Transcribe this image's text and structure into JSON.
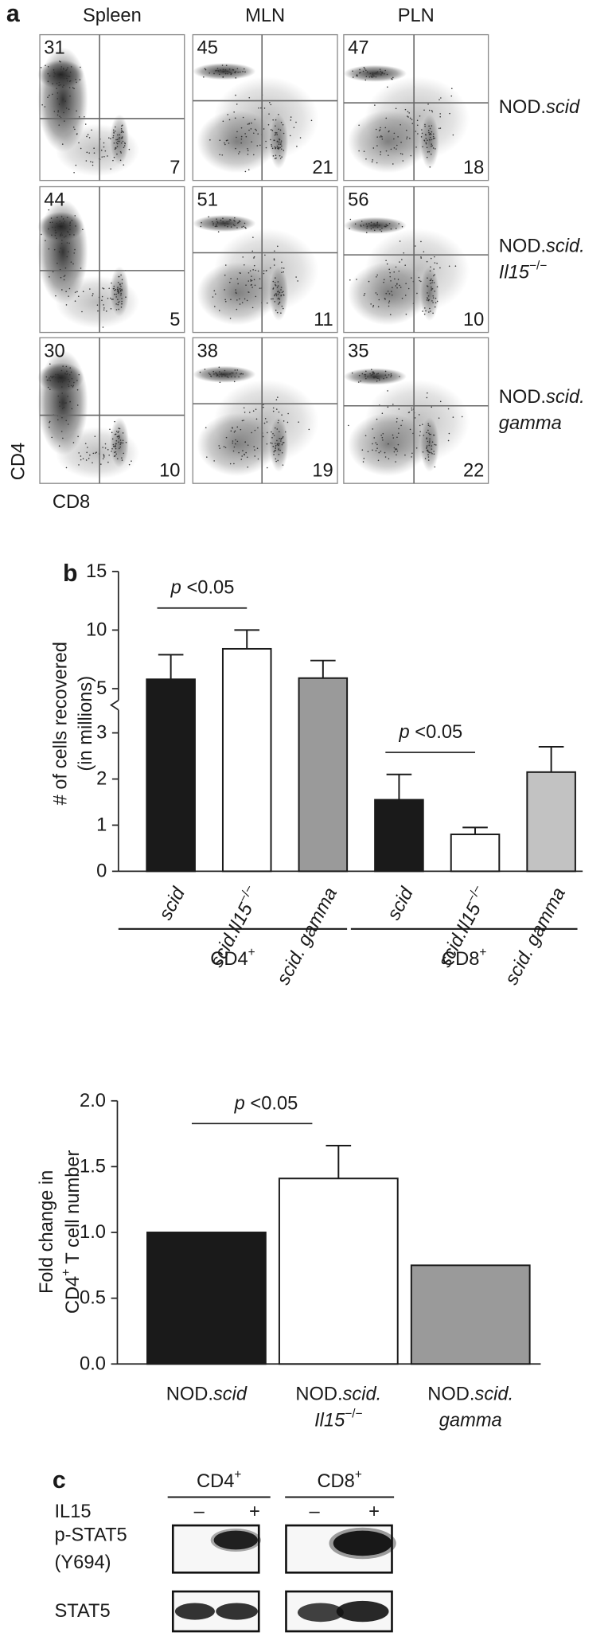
{
  "panel_labels": [
    "a",
    "b",
    "c"
  ],
  "flow": {
    "x_label": "CD8",
    "y_label": "CD4",
    "columns": [
      "Spleen",
      "MLN",
      "PLN"
    ],
    "rows": [
      [
        [
          {
            "text": "NOD."
          },
          {
            "text": "scid",
            "style": "italic"
          }
        ]
      ],
      [
        [
          {
            "text": "NOD."
          },
          {
            "text": "scid.",
            "style": "italic"
          }
        ],
        [
          {
            "text": "Il15",
            "style": "italic"
          },
          {
            "text": "−/−",
            "style": "sup"
          }
        ]
      ],
      [
        [
          {
            "text": "NOD."
          },
          {
            "text": "scid.",
            "style": "italic"
          }
        ],
        [
          {
            "text": "gamma",
            "style": "italic"
          }
        ]
      ]
    ],
    "values": [
      [
        {
          "upper_left": 31,
          "lower_right": 7
        },
        {
          "upper_left": 45,
          "lower_right": 21
        },
        {
          "upper_left": 47,
          "lower_right": 18
        }
      ],
      [
        {
          "upper_left": 44,
          "lower_right": 5
        },
        {
          "upper_left": 51,
          "lower_right": 11
        },
        {
          "upper_left": 56,
          "lower_right": 10
        }
      ],
      [
        {
          "upper_left": 30,
          "lower_right": 10
        },
        {
          "upper_left": 38,
          "lower_right": 19
        },
        {
          "upper_left": 35,
          "lower_right": 22
        }
      ]
    ]
  },
  "chart_data": [
    {
      "type": "bar",
      "y_label": [
        [
          {
            "text": "# of cells recovered"
          }
        ],
        [
          {
            "text": "(in millions)"
          }
        ]
      ],
      "categories": [
        [
          [
            {
              "text": "scid",
              "style": "italic"
            }
          ]
        ],
        [
          [
            {
              "text": "scid.Il15",
              "style": "italic"
            },
            {
              "text": "−/−",
              "style": "sup"
            }
          ]
        ],
        [
          [
            {
              "text": "scid. gamma",
              "style": "italic"
            }
          ]
        ],
        [
          [
            {
              "text": "scid",
              "style": "italic"
            }
          ]
        ],
        [
          [
            {
              "text": "scid.Il15",
              "style": "italic"
            },
            {
              "text": "−/−",
              "style": "sup"
            }
          ]
        ],
        [
          [
            {
              "text": "scid. gamma",
              "style": "italic"
            }
          ]
        ]
      ],
      "values": [
        5.8,
        8.4,
        5.9,
        1.55,
        0.8,
        2.15
      ],
      "errors": [
        2.1,
        1.6,
        1.5,
        0.55,
        0.15,
        0.55
      ],
      "colors": [
        "#1a1a1a",
        "#ffffff",
        "#9a9a9a",
        "#1a1a1a",
        "#ffffff",
        "#c2c2c2"
      ],
      "groups": [
        [
          [
            {
              "text": "CD4"
            },
            {
              "text": "+",
              "style": "sup"
            }
          ]
        ],
        [
          [
            {
              "text": "CD8"
            },
            {
              "text": "+",
              "style": "sup"
            }
          ]
        ]
      ],
      "ylim": [
        0,
        15
      ],
      "ybreak": [
        3.5,
        4
      ],
      "yticks": [
        0,
        1,
        2,
        3,
        5,
        10,
        15
      ],
      "annotations": [
        {
          "between": [
            0,
            1
          ],
          "label": [
            [
              {
                "text": "p",
                "style": "italic"
              },
              {
                "text": " <0.05"
              }
            ]
          ]
        },
        {
          "between": [
            3,
            4
          ],
          "label": [
            [
              {
                "text": "p",
                "style": "italic"
              },
              {
                "text": " <0.05"
              }
            ]
          ]
        }
      ]
    },
    {
      "type": "bar",
      "y_label": [
        [
          {
            "text": "Fold change in"
          }
        ],
        [
          {
            "text": "CD4"
          },
          {
            "text": "+",
            "style": "sup"
          },
          {
            "text": " T cell number"
          }
        ]
      ],
      "categories": [
        [
          [
            {
              "text": "NOD."
            },
            {
              "text": "scid",
              "style": "italic"
            }
          ]
        ],
        [
          [
            {
              "text": "NOD."
            },
            {
              "text": "scid.",
              "style": "italic"
            }
          ],
          [
            {
              "text": "Il15",
              "style": "italic"
            },
            {
              "text": "−/−",
              "style": "sup"
            }
          ]
        ],
        [
          [
            {
              "text": "NOD."
            },
            {
              "text": "scid.",
              "style": "italic"
            }
          ],
          [
            {
              "text": "gamma",
              "style": "italic"
            }
          ]
        ]
      ],
      "values": [
        1.0,
        1.41,
        0.75
      ],
      "errors": [
        null,
        0.25,
        null
      ],
      "colors": [
        "#1a1a1a",
        "#ffffff",
        "#9a9a9a"
      ],
      "ylim": [
        0,
        2
      ],
      "yticks": [
        {
          "value": 0,
          "label": "0.0"
        },
        0.5,
        {
          "value": 1,
          "label": "1.0"
        },
        1.5,
        {
          "value": 2,
          "label": "2.0"
        }
      ],
      "annotations": [
        {
          "between": [
            0,
            1
          ],
          "label": [
            [
              {
                "text": "p",
                "style": "italic"
              },
              {
                "text": " <0.05"
              }
            ]
          ]
        }
      ]
    }
  ],
  "blot": {
    "groups": [
      [
        [
          {
            "text": "CD4"
          },
          {
            "text": "+",
            "style": "sup"
          }
        ]
      ],
      [
        [
          {
            "text": "CD8"
          },
          {
            "text": "+",
            "style": "sup"
          }
        ]
      ]
    ],
    "treatment": "IL15",
    "lanes": [
      "–",
      "+",
      "–",
      "+"
    ],
    "rows": [
      [
        [
          {
            "text": "p-STAT5"
          }
        ],
        [
          {
            "text": "(Y694)"
          }
        ]
      ],
      [
        [
          {
            "text": "STAT5"
          }
        ]
      ]
    ]
  }
}
